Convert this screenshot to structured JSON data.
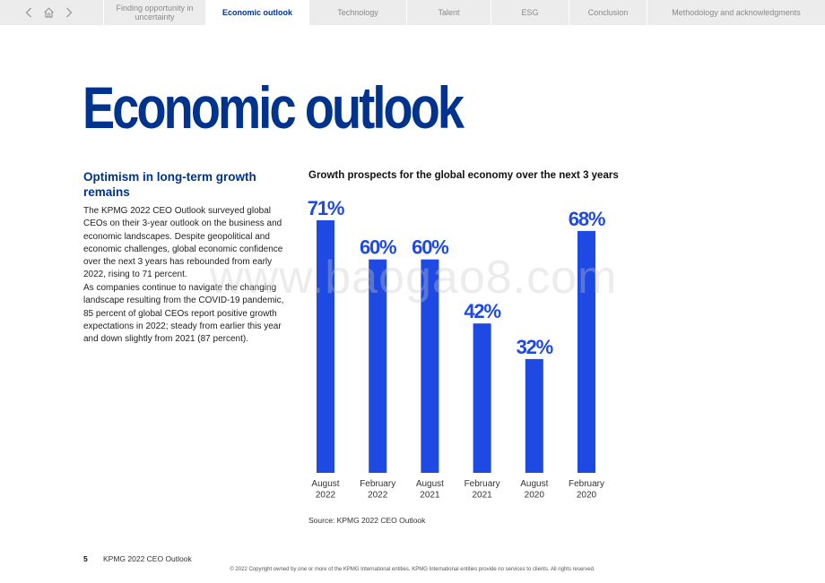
{
  "nav": {
    "tabs": [
      {
        "label": "Finding opportunity in uncertainty",
        "active": false
      },
      {
        "label": "Economic outlook",
        "active": true
      },
      {
        "label": "Technology",
        "active": false
      },
      {
        "label": "Talent",
        "active": false
      },
      {
        "label": "ESG",
        "active": false
      },
      {
        "label": "Conclusion",
        "active": false
      },
      {
        "label": "Methodology and acknowledgments",
        "active": false
      }
    ],
    "icons": [
      "chevron-left-icon",
      "home-icon",
      "chevron-right-icon"
    ]
  },
  "page": {
    "title": "Economic outlook",
    "subheading": "Optimism in long-term growth remains",
    "paragraph1": "The KPMG 2022 CEO Outlook surveyed global CEOs on their 3-year outlook on the business and economic landscapes. Despite geopolitical and economic challenges, global economic confidence over the next 3 years has rebounded from early 2022, rising to 71 percent.",
    "paragraph2": "As companies continue to navigate the changing landscape resulting from the COVID-19 pandemic, 85 percent of global CEOs report positive growth expectations in 2022; steady from earlier this year and down slightly from 2021 (87 percent)."
  },
  "chart_data": {
    "type": "bar",
    "title": "Growth prospects for the global economy over the next 3 years",
    "categories": [
      "August 2022",
      "February 2022",
      "August 2021",
      "February 2021",
      "August 2020",
      "February 2020"
    ],
    "category_lines": [
      [
        "August",
        "2022"
      ],
      [
        "February",
        "2022"
      ],
      [
        "August",
        "2021"
      ],
      [
        "February",
        "2021"
      ],
      [
        "August",
        "2020"
      ],
      [
        "February",
        "2020"
      ]
    ],
    "values": [
      71,
      60,
      60,
      42,
      32,
      68
    ],
    "value_labels": [
      "71%",
      "60%",
      "60%",
      "42%",
      "32%",
      "68%"
    ],
    "unit": "%",
    "ylim": [
      0,
      71
    ],
    "grid": false,
    "bar_color": "#1e49e2",
    "label_color": "#1e49e2"
  },
  "source": "Source: KPMG 2022 CEO Outlook",
  "footer": {
    "page_number": "5",
    "publication": "KPMG 2022 CEO Outlook",
    "copyright": "© 2022 Copyright owned by one or more of the KPMG International entities. KPMG International entities provide no services to clients. All rights reserved."
  },
  "watermark": "www.baogao8.com",
  "colors": {
    "brand": "#00338d",
    "bar": "#1e49e2",
    "nav_bg": "#ececec"
  }
}
